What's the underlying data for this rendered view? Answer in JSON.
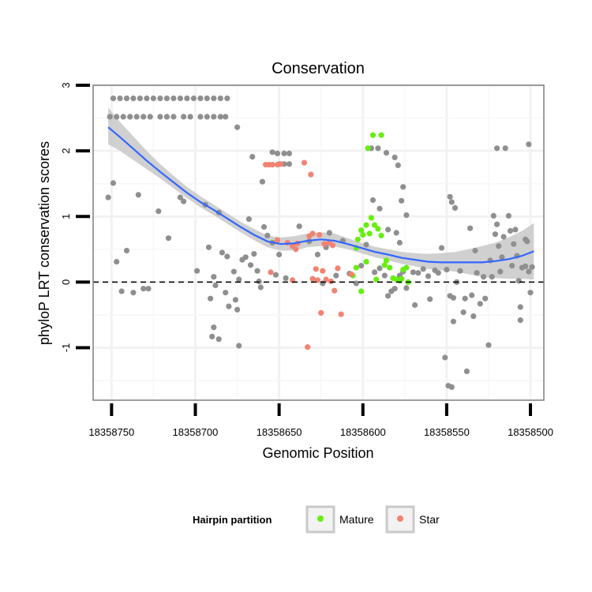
{
  "chart_data": {
    "type": "scatter",
    "title": "Conservation",
    "xlabel": "Genomic Position",
    "ylabel": "phyloP LRT conservation scores",
    "xlim": [
      18358761,
      18358492
    ],
    "ylim": [
      -1.8,
      3.0
    ],
    "x_reversed": true,
    "x_ticks": [
      18358750,
      18358700,
      18358650,
      18358600,
      18358550,
      18358500
    ],
    "x_tick_labels": [
      "18358750",
      "18358700",
      "18358650",
      "18358600",
      "18358550",
      "18358500"
    ],
    "y_ticks": [
      -1,
      0,
      1,
      2,
      3
    ],
    "y_tick_labels": [
      "-1",
      "0",
      "1",
      "2",
      "3"
    ],
    "grid": true,
    "reference_line": {
      "y": 0,
      "style": "dashed"
    },
    "legend": {
      "title": "Hairpin partition",
      "placement": "bottom",
      "entries": [
        {
          "label": "Mature",
          "color": "#66ee11"
        },
        {
          "label": "Star",
          "color": "#f28372"
        }
      ]
    },
    "colors": {
      "other": "#8f8f8f",
      "Mature": "#66ee11",
      "Star": "#f28372",
      "smooth_line": "#3366ff",
      "confidence_band": "#c8c8c8"
    },
    "series": [
      {
        "name": "Other",
        "points": [
          [
            18358749,
            2.8
          ],
          [
            18358745,
            2.8
          ],
          [
            18358741,
            2.8
          ],
          [
            18358737,
            2.8
          ],
          [
            18358733,
            2.8
          ],
          [
            18358729,
            2.8
          ],
          [
            18358725,
            2.8
          ],
          [
            18358721,
            2.8
          ],
          [
            18358717,
            2.8
          ],
          [
            18358713,
            2.8
          ],
          [
            18358709,
            2.8
          ],
          [
            18358705,
            2.8
          ],
          [
            18358701,
            2.8
          ],
          [
            18358697,
            2.8
          ],
          [
            18358693,
            2.8
          ],
          [
            18358689,
            2.8
          ],
          [
            18358685,
            2.8
          ],
          [
            18358681,
            2.8
          ],
          [
            18358751,
            2.52
          ],
          [
            18358747,
            2.52
          ],
          [
            18358743,
            2.52
          ],
          [
            18358739,
            2.52
          ],
          [
            18358735,
            2.52
          ],
          [
            18358731,
            2.52
          ],
          [
            18358727,
            2.52
          ],
          [
            18358721,
            2.52
          ],
          [
            18358717,
            2.52
          ],
          [
            18358713,
            2.52
          ],
          [
            18358707,
            2.52
          ],
          [
            18358703,
            2.52
          ],
          [
            18358697,
            2.52
          ],
          [
            18358693,
            2.52
          ],
          [
            18358689,
            2.52
          ],
          [
            18358685,
            2.52
          ],
          [
            18358682,
            2.52
          ],
          [
            18358675,
            2.36
          ],
          [
            18358654,
            1.98
          ],
          [
            18358651,
            1.96
          ],
          [
            18358647,
            1.96
          ],
          [
            18358644,
            1.96
          ],
          [
            18358650,
            1.8
          ],
          [
            18358647,
            1.8
          ],
          [
            18358644,
            1.8
          ],
          [
            18358666,
            1.91
          ],
          [
            18358660,
            1.53
          ],
          [
            18358595,
            2.04
          ],
          [
            18358591,
            2.04
          ],
          [
            18358586,
            1.97
          ],
          [
            18358581,
            1.9
          ],
          [
            18358579,
            1.78
          ],
          [
            18358576,
            1.45
          ],
          [
            18358577,
            1.24
          ],
          [
            18358574,
            1.02
          ],
          [
            18358520,
            2.04
          ],
          [
            18358515,
            2.04
          ],
          [
            18358501,
            2.1
          ],
          [
            18358548,
            1.3
          ],
          [
            18358547,
            1.22
          ],
          [
            18358545,
            1.13
          ],
          [
            18358594,
            1.25
          ],
          [
            18358590,
            1.12
          ],
          [
            18358585,
            0.8
          ],
          [
            18358580,
            0.75
          ],
          [
            18358578,
            0.6
          ],
          [
            18358752,
            1.29
          ],
          [
            18358749,
            1.51
          ],
          [
            18358747,
            0.31
          ],
          [
            18358744,
            -0.14
          ],
          [
            18358741,
            0.48
          ],
          [
            18358737,
            -0.16
          ],
          [
            18358734,
            1.33
          ],
          [
            18358731,
            -0.1
          ],
          [
            18358728,
            -0.1
          ],
          [
            18358722,
            1.08
          ],
          [
            18358716,
            0.67
          ],
          [
            18358709,
            1.29
          ],
          [
            18358707,
            1.23
          ],
          [
            18358699,
            0.17
          ],
          [
            18358694,
            1.18
          ],
          [
            18358692,
            0.53
          ],
          [
            18358691,
            -0.25
          ],
          [
            18358689,
            0.08
          ],
          [
            18358688,
            -0.05
          ],
          [
            18358690,
            -0.83
          ],
          [
            18358689,
            -0.69
          ],
          [
            18358686,
            -0.87
          ],
          [
            18358686,
            1.06
          ],
          [
            18358684,
            0.45
          ],
          [
            18358682,
            -0.16
          ],
          [
            18358681,
            0.39
          ],
          [
            18358680,
            -0.37
          ],
          [
            18358677,
            0.16
          ],
          [
            18358676,
            -0.27
          ],
          [
            18358675,
            -0.42
          ],
          [
            18358674,
            0.04
          ],
          [
            18358674,
            -0.97
          ],
          [
            18358672,
            0.34
          ],
          [
            18358670,
            0.38
          ],
          [
            18358668,
            0.96
          ],
          [
            18358667,
            0.26
          ],
          [
            18358665,
            0.43
          ],
          [
            18358663,
            0.17
          ],
          [
            18358662,
            0.01
          ],
          [
            18358661,
            -0.08
          ],
          [
            18358659,
            0.84
          ],
          [
            18358657,
            0.71
          ],
          [
            18358654,
            0.6
          ],
          [
            18358652,
            0.11
          ],
          [
            18358650,
            0.42
          ],
          [
            18358646,
            0.06
          ],
          [
            18358642,
            0.55
          ],
          [
            18358638,
            0.85
          ],
          [
            18358632,
            0.62
          ],
          [
            18358627,
            0.42
          ],
          [
            18358624,
            -0.02
          ],
          [
            18358622,
            0.53
          ],
          [
            18358620,
            0.75
          ],
          [
            18358616,
            0.1
          ],
          [
            18358612,
            0.63
          ],
          [
            18358608,
            0.13
          ],
          [
            18358604,
            -0.02
          ],
          [
            18358601,
            0.25
          ],
          [
            18358598,
            0.57
          ],
          [
            18358593,
            0.15
          ],
          [
            18358590,
            0.21
          ],
          [
            18358587,
            0.1
          ],
          [
            18358585,
            -0.21
          ],
          [
            18358583,
            -0.14
          ],
          [
            18358581,
            -0.1
          ],
          [
            18358578,
            0.1
          ],
          [
            18358576,
            0.16
          ],
          [
            18358574,
            -0.09
          ],
          [
            18358570,
            0.15
          ],
          [
            18358569,
            -0.35
          ],
          [
            18358567,
            0.14
          ],
          [
            18358564,
            0.2
          ],
          [
            18358561,
            0.09
          ],
          [
            18358560,
            -0.26
          ],
          [
            18358557,
            0.18
          ],
          [
            18358555,
            0.14
          ],
          [
            18358553,
            0.52
          ],
          [
            18358551,
            -1.15
          ],
          [
            18358550,
            0.19
          ],
          [
            18358549,
            -1.58
          ],
          [
            18358548,
            -0.21
          ],
          [
            18358547,
            -1.6
          ],
          [
            18358546,
            -0.24
          ],
          [
            18358546,
            -0.6
          ],
          [
            18358544,
            0.0
          ],
          [
            18358542,
            0.17
          ],
          [
            18358540,
            -0.46
          ],
          [
            18358539,
            -0.25
          ],
          [
            18358538,
            -1.36
          ],
          [
            18358536,
            0.82
          ],
          [
            18358535,
            -0.2
          ],
          [
            18358534,
            -0.52
          ],
          [
            18358533,
            0.48
          ],
          [
            18358532,
            0.14
          ],
          [
            18358530,
            -0.33
          ],
          [
            18358528,
            0.08
          ],
          [
            18358527,
            -0.25
          ],
          [
            18358525,
            -0.96
          ],
          [
            18358524,
            0.33
          ],
          [
            18358523,
            0.08
          ],
          [
            18358522,
            1.01
          ],
          [
            18358521,
            0.73
          ],
          [
            18358520,
            0.88
          ],
          [
            18358519,
            0.55
          ],
          [
            18358518,
            0.16
          ],
          [
            18358517,
            0.38
          ],
          [
            18358516,
            0.69
          ],
          [
            18358513,
            1.01
          ],
          [
            18358512,
            0.78
          ],
          [
            18358511,
            0.25
          ],
          [
            18358509,
            0.8
          ],
          [
            18358508,
            0.4
          ],
          [
            18358507,
            0.02
          ],
          [
            18358506,
            -0.58
          ],
          [
            18358506,
            -0.38
          ],
          [
            18358503,
            0.65
          ],
          [
            18358503,
            0.24
          ],
          [
            18358501,
            0.16
          ],
          [
            18358500,
            -0.16
          ],
          [
            18358499,
            0.23
          ],
          [
            18358510,
            0.58
          ],
          [
            18358505,
            0.22
          ],
          [
            18358502,
            0.62
          ]
        ]
      },
      {
        "name": "Mature",
        "points": [
          [
            18358604,
            0.52
          ],
          [
            18358603,
            0.65
          ],
          [
            18358601,
            0.79
          ],
          [
            18358600,
            0.72
          ],
          [
            18358598,
            0.87
          ],
          [
            18358596,
            0.74
          ],
          [
            18358595,
            0.98
          ],
          [
            18358593,
            0.87
          ],
          [
            18358591,
            0.81
          ],
          [
            18358589,
            0.71
          ],
          [
            18358587,
            0.26
          ],
          [
            18358586,
            0.33
          ],
          [
            18358584,
            0.22
          ],
          [
            18358582,
            0.06
          ],
          [
            18358580,
            0.04
          ],
          [
            18358578,
            0.02
          ],
          [
            18358577,
            0.05
          ],
          [
            18358576,
            0.19
          ],
          [
            18358574,
            0.22
          ],
          [
            18358573,
            0.0
          ],
          [
            18358604,
            0.22
          ],
          [
            18358606,
            0.1
          ],
          [
            18358601,
            -0.14
          ],
          [
            18358598,
            0.31
          ],
          [
            18358592,
            0.04
          ],
          [
            18358597,
            2.04
          ],
          [
            18358594,
            2.24
          ],
          [
            18358589,
            2.24
          ]
        ]
      },
      {
        "name": "Star",
        "points": [
          [
            18358658,
            1.79
          ],
          [
            18358656,
            1.79
          ],
          [
            18358654,
            1.79
          ],
          [
            18358651,
            1.79
          ],
          [
            18358649,
            1.8
          ],
          [
            18358635,
            1.82
          ],
          [
            18358631,
            1.64
          ],
          [
            18358626,
            0.72
          ],
          [
            18358632,
            0.7
          ],
          [
            18358630,
            0.74
          ],
          [
            18358623,
            0.58
          ],
          [
            18358620,
            0.6
          ],
          [
            18358618,
            0.56
          ],
          [
            18358639,
            0.59
          ],
          [
            18358642,
            0.55
          ],
          [
            18358640,
            0.5
          ],
          [
            18358628,
            0.2
          ],
          [
            18358624,
            0.17
          ],
          [
            18358622,
            0.04
          ],
          [
            18358619,
            0.01
          ],
          [
            18358617,
            -0.13
          ],
          [
            18358630,
            0.05
          ],
          [
            18358627,
            0.03
          ],
          [
            18358642,
            0.03
          ],
          [
            18358655,
            0.15
          ],
          [
            18358651,
            0.64
          ],
          [
            18358645,
            0.6
          ],
          [
            18358615,
            0.21
          ],
          [
            18358613,
            -0.49
          ],
          [
            18358607,
            0.12
          ],
          [
            18358625,
            -0.47
          ],
          [
            18358633,
            -0.99
          ]
        ]
      }
    ],
    "smooth": {
      "method": "loess",
      "x": [
        18358752,
        18358745,
        18358737,
        18358729,
        18358721,
        18358713,
        18358705,
        18358697,
        18358689,
        18358681,
        18358673,
        18358665,
        18358657,
        18358649,
        18358641,
        18358633,
        18358625,
        18358617,
        18358609,
        18358601,
        18358593,
        18358585,
        18358577,
        18358569,
        18358561,
        18358553,
        18358545,
        18358537,
        18358529,
        18358521,
        18358513,
        18358505,
        18358498
      ],
      "y": [
        2.36,
        2.21,
        2.03,
        1.85,
        1.68,
        1.52,
        1.36,
        1.22,
        1.1,
        0.97,
        0.84,
        0.72,
        0.62,
        0.58,
        0.59,
        0.63,
        0.65,
        0.63,
        0.58,
        0.52,
        0.46,
        0.42,
        0.37,
        0.34,
        0.31,
        0.3,
        0.3,
        0.3,
        0.3,
        0.32,
        0.35,
        0.4,
        0.47
      ],
      "lower": [
        2.1,
        2.0,
        1.86,
        1.72,
        1.58,
        1.43,
        1.28,
        1.14,
        1.02,
        0.89,
        0.76,
        0.64,
        0.53,
        0.48,
        0.48,
        0.53,
        0.55,
        0.54,
        0.5,
        0.44,
        0.38,
        0.33,
        0.28,
        0.24,
        0.2,
        0.18,
        0.16,
        0.12,
        0.08,
        0.06,
        0.05,
        0.05,
        0.04
      ],
      "upper": [
        2.66,
        2.44,
        2.22,
        2.0,
        1.8,
        1.62,
        1.45,
        1.31,
        1.18,
        1.05,
        0.92,
        0.81,
        0.71,
        0.68,
        0.7,
        0.74,
        0.76,
        0.74,
        0.67,
        0.6,
        0.54,
        0.5,
        0.46,
        0.44,
        0.43,
        0.44,
        0.46,
        0.5,
        0.55,
        0.6,
        0.68,
        0.78,
        0.9
      ]
    }
  }
}
